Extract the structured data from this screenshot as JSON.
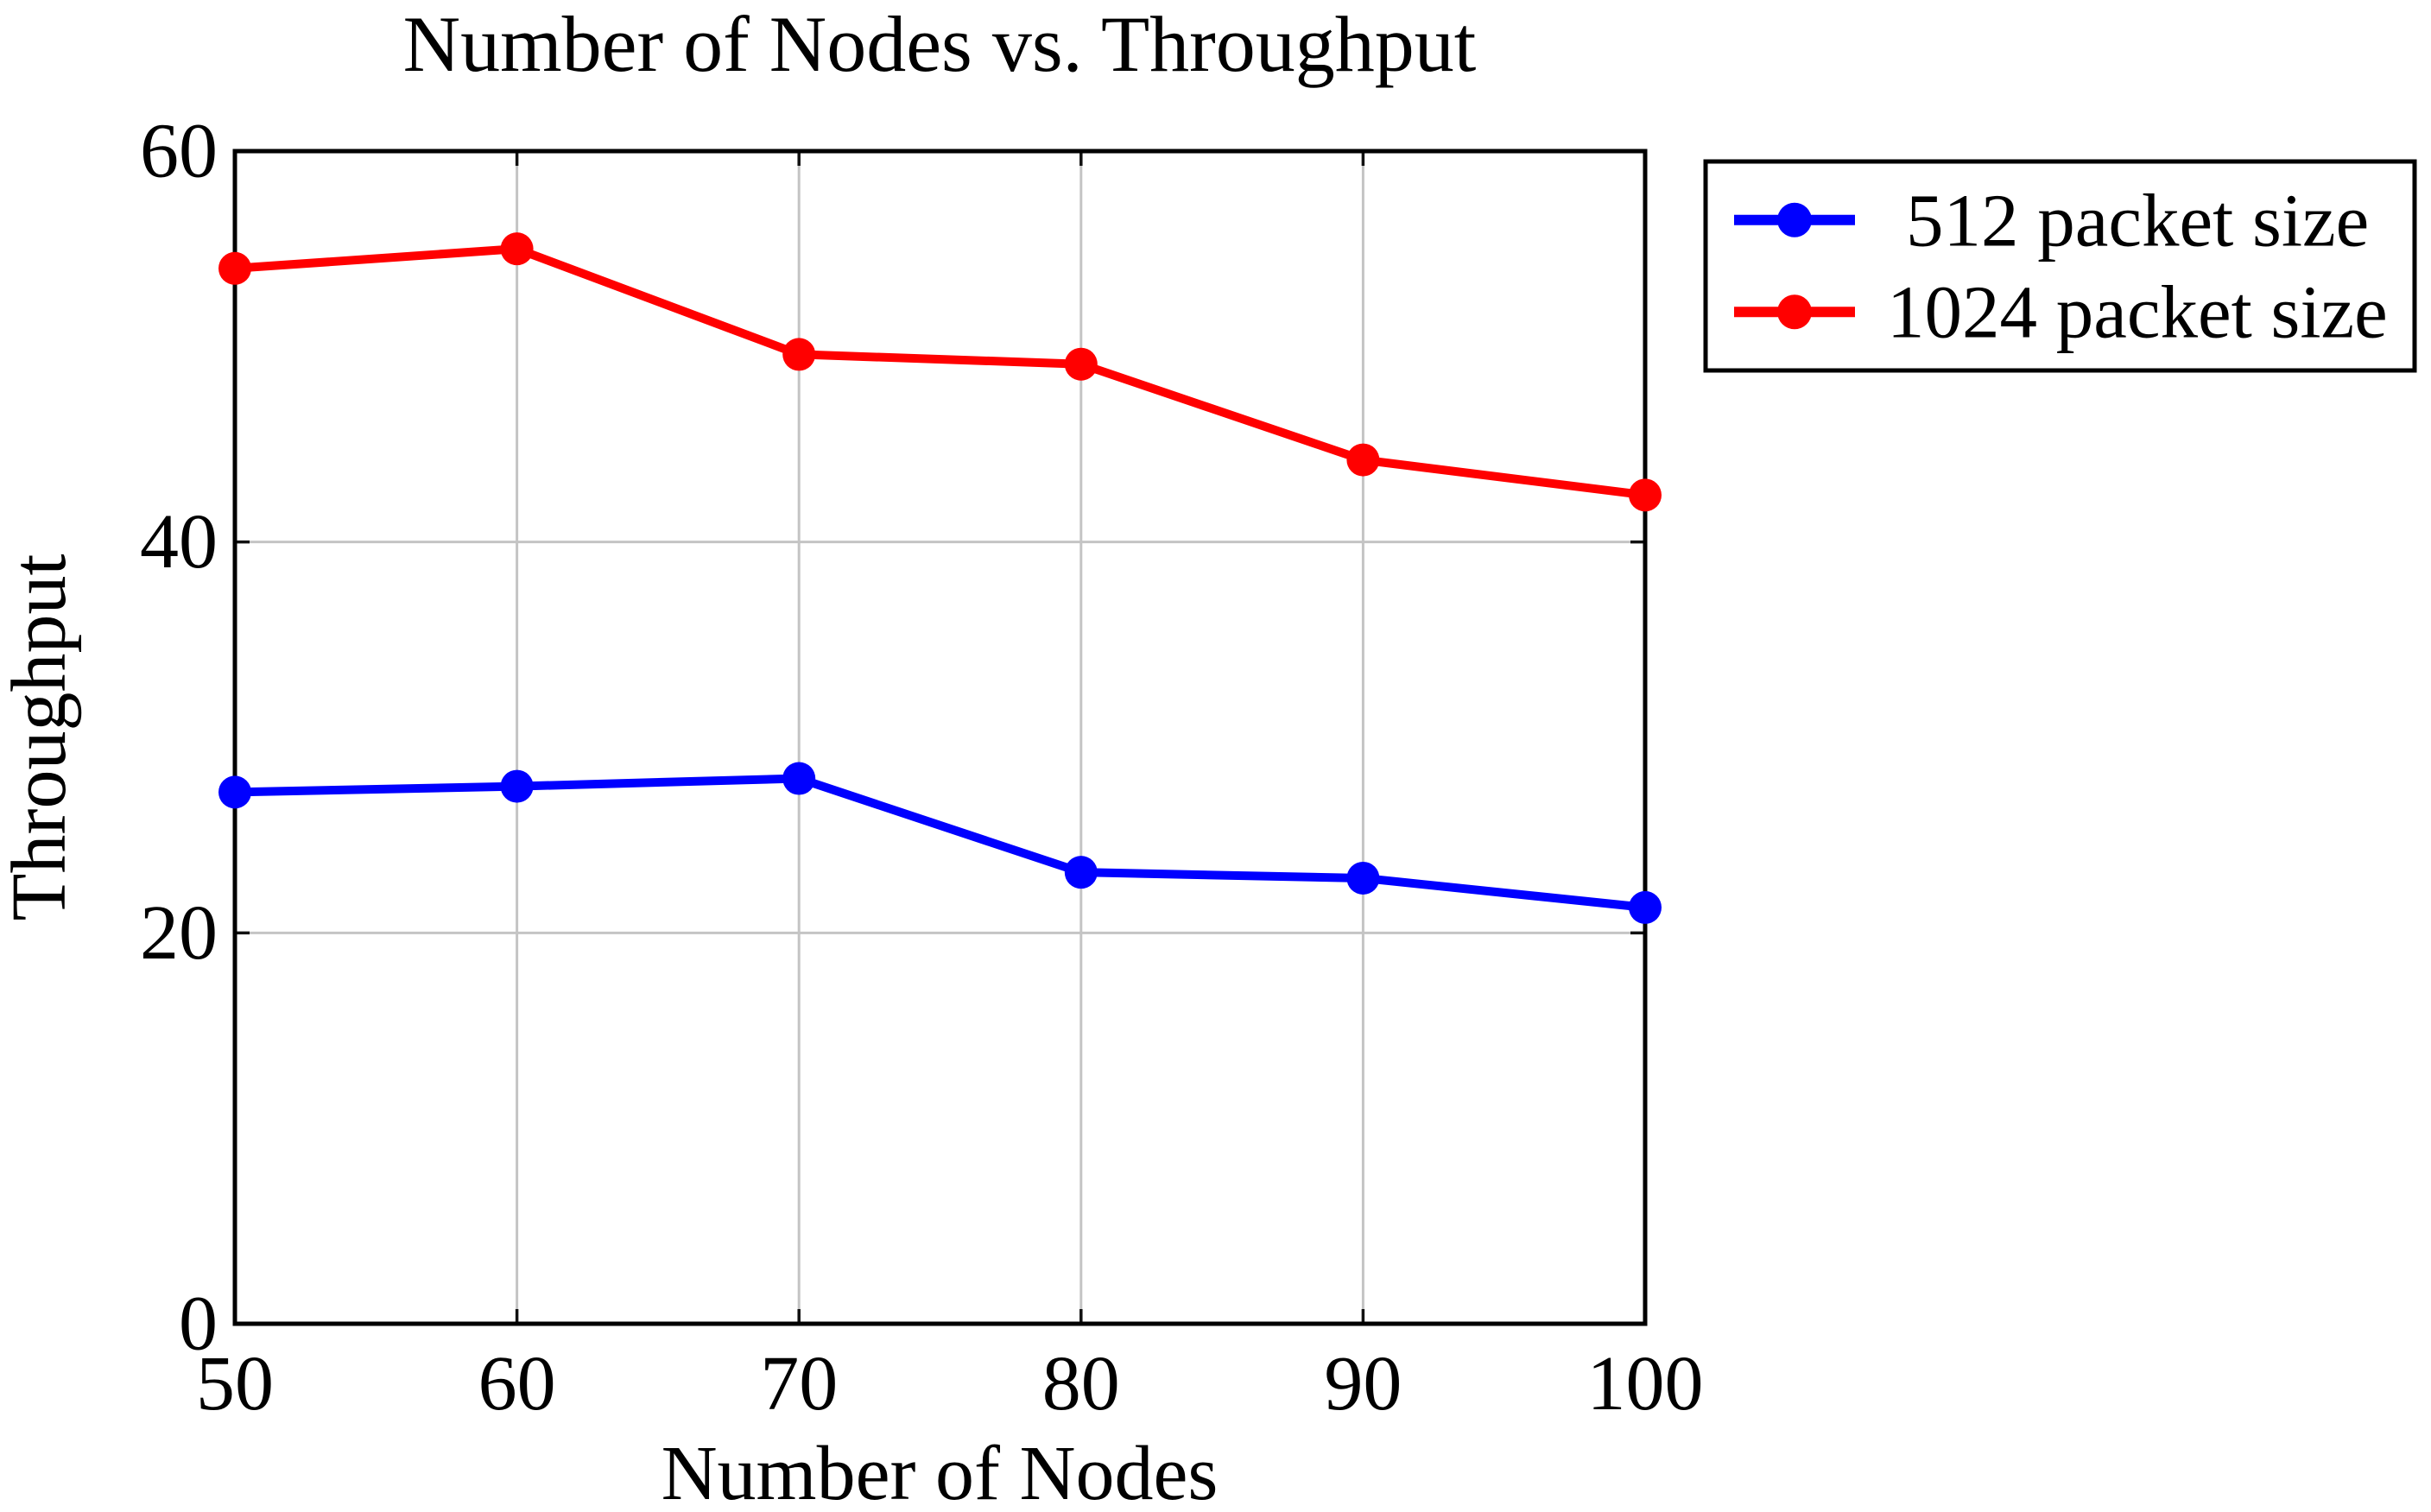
{
  "chart_data": {
    "type": "line",
    "title": "Number of Nodes vs. Throughput",
    "xlabel": "Number of Nodes",
    "ylabel": "Throughput",
    "x": [
      50,
      60,
      70,
      80,
      90,
      100
    ],
    "series": [
      {
        "name": "512 packet size",
        "color": "#0000ff",
        "marker": "circle",
        "values": [
          27.2,
          27.5,
          27.9,
          23.1,
          22.8,
          21.3
        ]
      },
      {
        "name": "1024 packet size",
        "color": "#ff0000",
        "marker": "circle",
        "values": [
          54.0,
          55.0,
          49.6,
          49.1,
          44.2,
          42.4
        ]
      }
    ],
    "xlim": [
      50,
      100
    ],
    "ylim": [
      0,
      60
    ],
    "xticks": [
      50,
      60,
      70,
      80,
      90,
      100
    ],
    "yticks": [
      0,
      20,
      40,
      60
    ],
    "grid": true,
    "grid_color": "#c4c4c4",
    "frame_color": "#000000",
    "background": "#ffffff",
    "legend_position": "outside-top-right"
  }
}
